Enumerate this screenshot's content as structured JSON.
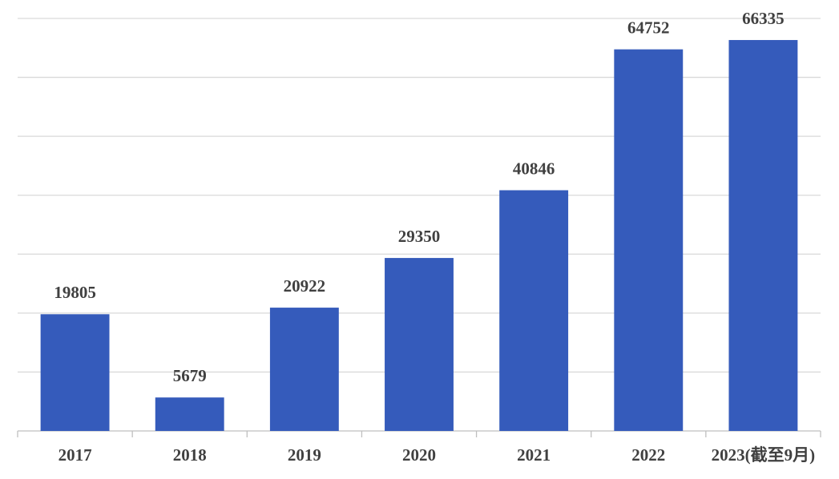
{
  "chart_data": {
    "type": "bar",
    "categories": [
      "2017",
      "2018",
      "2019",
      "2020",
      "2021",
      "2022",
      "2023(截至9月)"
    ],
    "values": [
      19805,
      5679,
      20922,
      29350,
      40846,
      64752,
      66335
    ],
    "color": "#355bbb",
    "ylim": [
      0,
      70000
    ],
    "yticks": [
      0,
      10000,
      20000,
      30000,
      40000,
      50000,
      60000,
      70000
    ],
    "grid": true
  }
}
